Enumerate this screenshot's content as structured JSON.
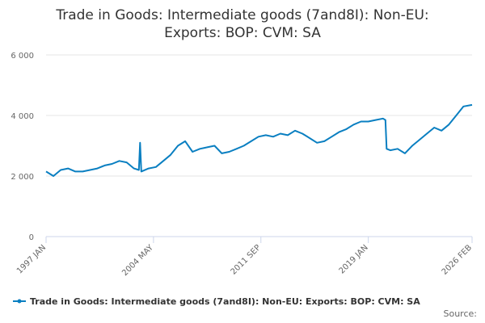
{
  "chart_data": {
    "type": "line",
    "title_lines": [
      "Trade in Goods: Intermediate goods (7and8I): Non-EU:",
      "Exports: BOP: CVM: SA"
    ],
    "xlabel": "",
    "ylabel": "",
    "x_ticks": [
      "1997 JAN",
      "2004 MAY",
      "2011 SEP",
      "2019 JAN",
      "2026 FEB"
    ],
    "x_range": [
      "1997-01",
      "2026-02"
    ],
    "y_ticks": [
      "0",
      "2 000",
      "4 000",
      "6 000"
    ],
    "ylim": [
      0,
      6000
    ],
    "grid": true,
    "legend_position": "bottom",
    "series": [
      {
        "name": "Trade in Goods: Intermediate goods (7and8I): Non-EU: Exports: BOP: CVM: SA",
        "color": "#0a7fc1",
        "x": [
          "1997-01",
          "1997-07",
          "1998-01",
          "1998-07",
          "1999-01",
          "1999-07",
          "2000-01",
          "2000-07",
          "2001-01",
          "2001-07",
          "2002-01",
          "2002-07",
          "2003-01",
          "2003-05",
          "2003-06",
          "2003-07",
          "2004-01",
          "2004-07",
          "2005-01",
          "2005-07",
          "2006-01",
          "2006-07",
          "2007-01",
          "2007-07",
          "2008-01",
          "2008-07",
          "2009-01",
          "2009-07",
          "2010-01",
          "2010-07",
          "2011-01",
          "2011-07",
          "2012-01",
          "2012-07",
          "2013-01",
          "2013-07",
          "2014-01",
          "2014-07",
          "2015-01",
          "2015-07",
          "2016-01",
          "2016-07",
          "2017-01",
          "2017-07",
          "2018-01",
          "2018-07",
          "2019-01",
          "2019-07",
          "2020-01",
          "2020-03",
          "2020-04",
          "2020-07",
          "2021-01",
          "2021-07",
          "2022-01",
          "2022-07",
          "2023-01",
          "2023-07",
          "2024-01",
          "2024-07",
          "2025-01",
          "2025-07",
          "2026-02"
        ],
        "values": [
          2150,
          2000,
          2200,
          2250,
          2150,
          2150,
          2200,
          2250,
          2350,
          2400,
          2500,
          2450,
          2250,
          2200,
          3100,
          2150,
          2250,
          2300,
          2500,
          2700,
          3000,
          3150,
          2800,
          2900,
          2950,
          3000,
          2750,
          2800,
          2900,
          3000,
          3150,
          3300,
          3350,
          3300,
          3400,
          3350,
          3500,
          3400,
          3250,
          3100,
          3150,
          3300,
          3450,
          3550,
          3700,
          3800,
          3800,
          3850,
          3900,
          3850,
          2900,
          2850,
          2900,
          2750,
          3000,
          3200,
          3400,
          3600,
          3500,
          3700,
          4000,
          4300,
          4350
        ]
      }
    ],
    "credits": "Source:"
  }
}
